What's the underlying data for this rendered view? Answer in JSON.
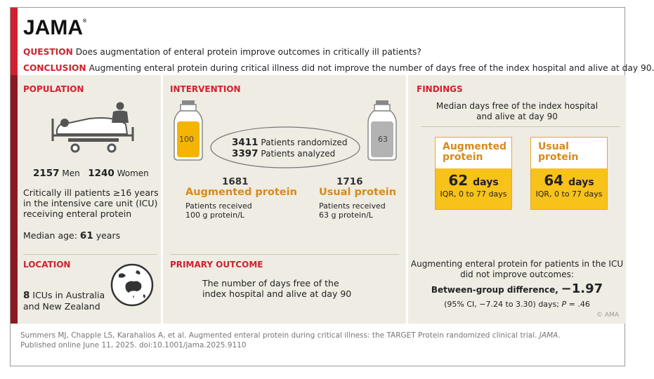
{
  "logo": {
    "text": "JAMA",
    "mark": "®"
  },
  "question": {
    "tag": "QUESTION",
    "text": "Does augmentation of enteral protein improve outcomes in critically ill patients?"
  },
  "conclusion": {
    "tag": "CONCLUSION",
    "text": "Augmenting enteral protein during critical illness did not improve the number of days free of the index hospital and alive at day 90."
  },
  "population": {
    "heading": "POPULATION",
    "men_count": "2157",
    "men_label": "Men",
    "women_count": "1240",
    "women_label": "Women",
    "desc_lines": [
      "Critically ill patients ≥16 years",
      "in the intensive care unit (ICU)",
      "receiving enteral protein"
    ],
    "median_label": "Median age:",
    "median_value": "61",
    "median_unit": "years"
  },
  "location": {
    "heading": "LOCATION",
    "count": "8",
    "line1": "ICUs in Australia",
    "line2": "and New Zealand"
  },
  "intervention": {
    "heading": "INTERVENTION",
    "randomized_count": "3411",
    "randomized_label": "Patients randomized",
    "analyzed_count": "3397",
    "analyzed_label": "Patients analyzed",
    "bottle_left_label": "100",
    "bottle_right_label": "63",
    "arm1": {
      "count": "1681",
      "name": "Augmented protein",
      "line1": "Patients received",
      "line2": "100 g protein/L"
    },
    "arm2": {
      "count": "1716",
      "name": "Usual protein",
      "line1": "Patients received",
      "line2": "63 g protein/L"
    }
  },
  "primary_outcome": {
    "heading": "PRIMARY OUTCOME",
    "line1": "The number of days free of the",
    "line2": "index hospital and alive at day 90"
  },
  "findings": {
    "heading": "FINDINGS",
    "subtitle_line1": "Median days free of the index hospital",
    "subtitle_line2": "and alive at day 90",
    "box1": {
      "label_line1": "Augmented",
      "label_line2": "protein",
      "value": "62",
      "unit": "days",
      "iqr": "IQR, 0 to 77 days"
    },
    "box2": {
      "label_line1": "Usual",
      "label_line2": "protein",
      "value": "64",
      "unit": "days",
      "iqr": "IQR, 0 to 77 days"
    },
    "result_line1": "Augmenting enteral protein for patients in the ICU",
    "result_line2": "did not improve outcomes:",
    "diff_label": "Between-group difference,",
    "diff_value": "−1.97",
    "ci_text": "(95% CI, −7.24 to 3.30) days;",
    "p_label": "P",
    "p_value": "= .46"
  },
  "copyright": "© AMA",
  "footer": {
    "line1_a": "Summers MJ, Chapple LS, Karahalios A, et al. Augmented enteral protein during critical illness: the TARGET Protein randomized clinical trial.",
    "line1_b": "JAMA",
    "line1_c": ".",
    "line2": "Published online June 11, 2025. doi:10.1001/jama.2025.9110"
  },
  "colors": {
    "brand_red": "#d1202f",
    "dark_red": "#8b1a23",
    "orange": "#d88a1a",
    "yellow": "#f7c21a",
    "panel_bg": "#efece3"
  },
  "icons": [
    "hospital-bed-icon",
    "clinician-icon",
    "globe-icon",
    "protein-bottle-icon"
  ]
}
